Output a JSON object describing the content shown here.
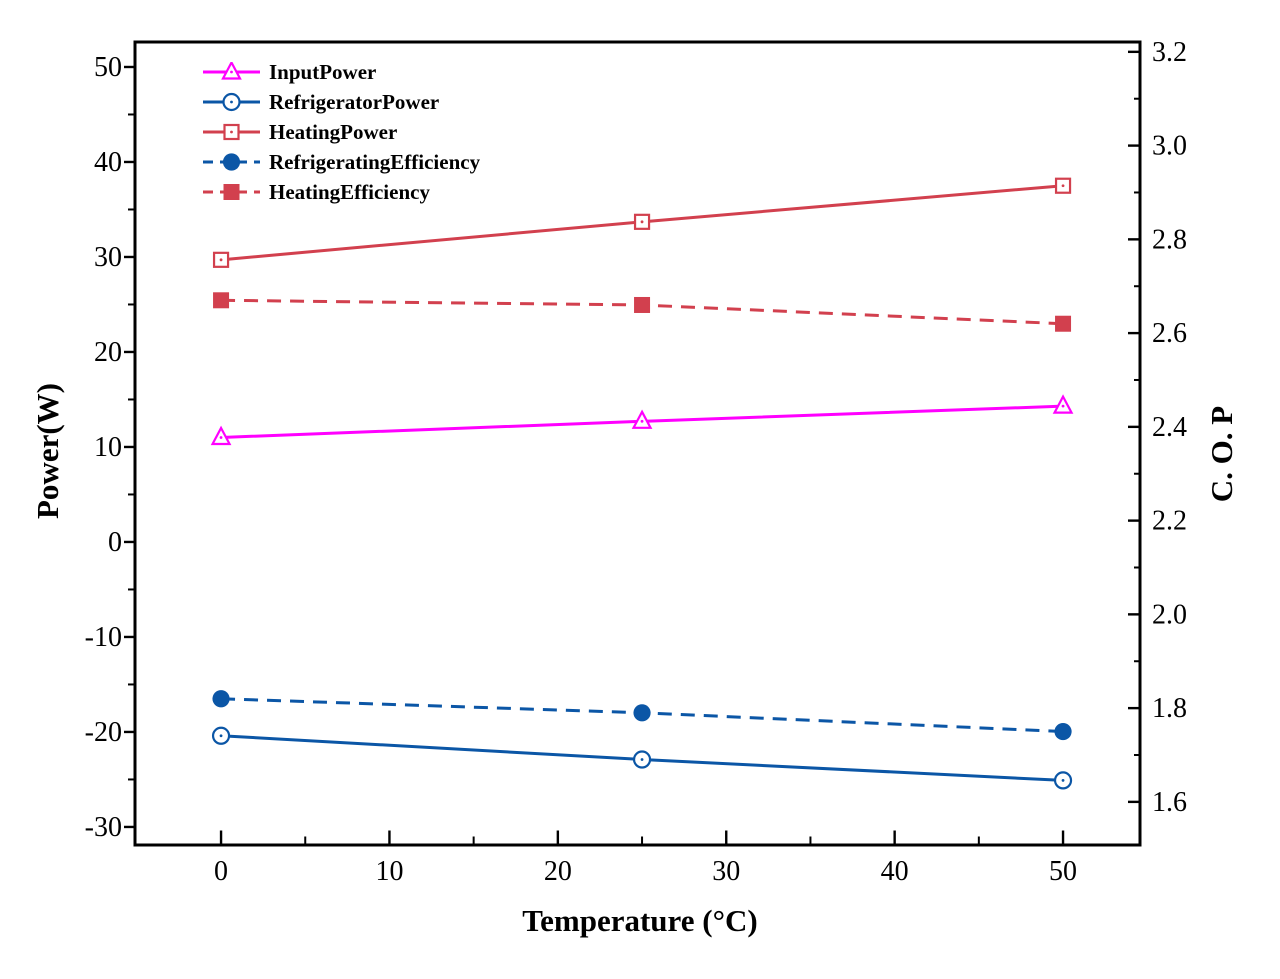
{
  "figure": {
    "background_color": "#FFFFFF",
    "frame_color": "#000000"
  },
  "chart_data": {
    "type": "line",
    "title": "",
    "xlabel": "Temperature (°C)",
    "ylabel_left": "Power(W)",
    "ylabel_right": "C. O. P",
    "x": [
      0,
      25,
      50
    ],
    "xlim": [
      -5.11,
      54.57
    ],
    "ylim_left": [
      -31.9,
      52.63
    ],
    "ylim_right": [
      1.508,
      3.221
    ],
    "grid": false,
    "legend_position": "top-left-inside",
    "x_ticks": [
      {
        "v": 0,
        "label": "0"
      },
      {
        "v": 10,
        "label": "10"
      },
      {
        "v": 20,
        "label": "20"
      },
      {
        "v": 30,
        "label": "30"
      },
      {
        "v": 40,
        "label": "40"
      },
      {
        "v": 50,
        "label": "50"
      }
    ],
    "x_minor_ticks": [
      5,
      15,
      25,
      35,
      45
    ],
    "left_ticks": [
      {
        "v": 50,
        "label": "50"
      },
      {
        "v": 40,
        "label": "40"
      },
      {
        "v": 30,
        "label": "30"
      },
      {
        "v": 20,
        "label": "20"
      },
      {
        "v": 10,
        "label": "10"
      },
      {
        "v": 0,
        "label": "0"
      },
      {
        "v": -10,
        "label": "-10"
      },
      {
        "v": -20,
        "label": "-20"
      },
      {
        "v": -30,
        "label": "-30"
      }
    ],
    "left_minor_ticks": [
      45,
      35,
      25,
      15,
      5,
      -5,
      -15,
      -25
    ],
    "right_ticks": [
      {
        "v": 3.2,
        "label": "3.2"
      },
      {
        "v": 3.0,
        "label": "3.0"
      },
      {
        "v": 2.8,
        "label": "2.8"
      },
      {
        "v": 2.6,
        "label": "2.6"
      },
      {
        "v": 2.4,
        "label": "2.4"
      },
      {
        "v": 2.2,
        "label": "2.2"
      },
      {
        "v": 2.0,
        "label": "2.0"
      },
      {
        "v": 1.8,
        "label": "1.8"
      },
      {
        "v": 1.6,
        "label": "1.6"
      }
    ],
    "right_minor_ticks": [
      3.1,
      2.9,
      2.7,
      2.5,
      2.3,
      2.1,
      1.9,
      1.7
    ],
    "series": [
      {
        "name": "InputPower",
        "axis": "left",
        "color": "#FF00FF",
        "line": "solid",
        "marker": "triangle-open",
        "values": [
          11.0,
          12.7,
          14.3
        ]
      },
      {
        "name": "RefrigeratorPower",
        "axis": "left",
        "color": "#0B56A6",
        "line": "solid",
        "marker": "circle-open",
        "values": [
          -20.4,
          -22.9,
          -25.1
        ]
      },
      {
        "name": "HeatingPower",
        "axis": "left",
        "color": "#D2404E",
        "line": "solid",
        "marker": "square-open",
        "values": [
          29.7,
          33.7,
          37.5
        ]
      },
      {
        "name": "RefrigeratingEfficiency",
        "axis": "right",
        "color": "#0B56A6",
        "line": "dashed",
        "marker": "circle-filled",
        "values": [
          1.82,
          1.79,
          1.75
        ]
      },
      {
        "name": "HeatingEfficiency",
        "axis": "right",
        "color": "#D2404E",
        "line": "dashed",
        "marker": "square-filled",
        "values": [
          2.67,
          2.66,
          2.62
        ]
      }
    ]
  }
}
